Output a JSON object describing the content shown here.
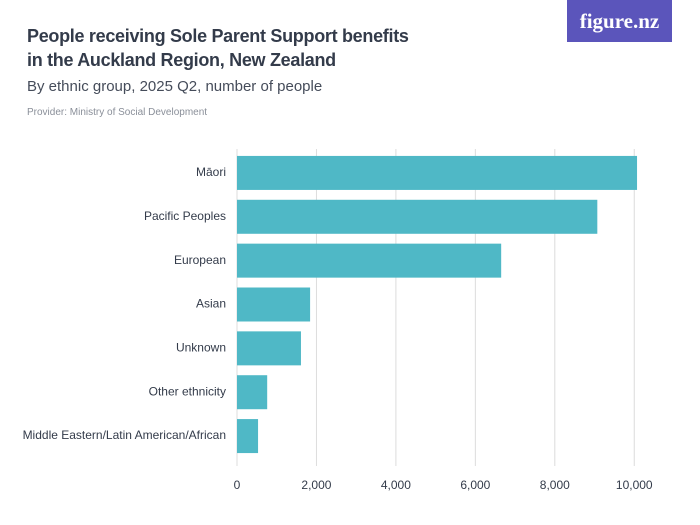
{
  "brand": "figure.nz",
  "chart_data": {
    "type": "bar",
    "orientation": "horizontal",
    "title": "People receiving Sole Parent Support benefits in the Auckland Region, New Zealand",
    "subtitle": "By ethnic group, 2025 Q2, number of people",
    "source": "Provider: Ministry of Social Development",
    "categories": [
      "Māori",
      "Pacific Peoples",
      "European",
      "Asian",
      "Unknown",
      "Other ethnicity",
      "Middle Eastern/Latin American/African"
    ],
    "values": [
      10070,
      9070,
      6650,
      1840,
      1610,
      760,
      530
    ],
    "color": "#4fb8c6",
    "xlim": [
      0,
      10950
    ],
    "xticks": [
      0,
      {
        "value": 2000,
        "label": "2,000"
      },
      {
        "value": 4000,
        "label": "4,000"
      },
      {
        "value": 6000,
        "label": "6,000"
      },
      {
        "value": 8000,
        "label": "8,000"
      },
      {
        "value": 10000,
        "label": "10,000"
      }
    ],
    "grid": true
  }
}
